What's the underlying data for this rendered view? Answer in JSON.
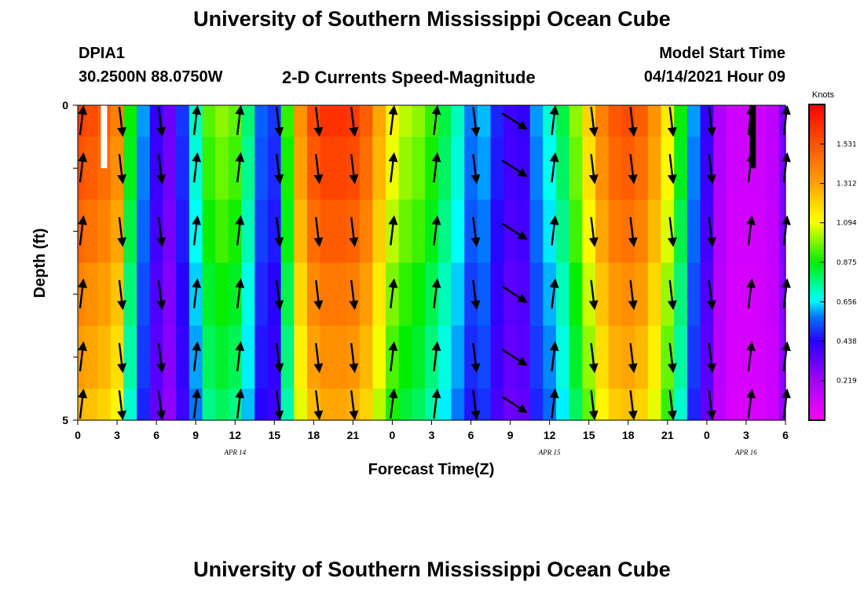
{
  "header": {
    "title": "University of Southern Mississippi Ocean Cube",
    "station": "DPIA1",
    "coordinates": "30.2500N  88.0750W",
    "subtitle": "2-D Currents Speed-Magnitude",
    "model_label": "Model Start Time",
    "model_time": "04/14/2021 Hour 09"
  },
  "footer": {
    "title": "University of Southern Mississippi Ocean Cube"
  },
  "chart_data": {
    "type": "heatmap",
    "title": "2-D Currents Speed-Magnitude",
    "xlabel": "Forecast Time(Z)",
    "ylabel": "Depth (ft)",
    "x_hours": [
      0,
      1,
      2,
      3,
      4,
      5,
      6,
      7,
      8,
      9,
      10,
      11,
      12,
      13,
      14,
      15,
      16,
      17,
      18,
      19,
      20,
      21,
      22,
      23,
      24,
      25,
      26,
      27,
      28,
      29,
      30,
      31,
      32,
      33,
      34,
      35,
      36,
      37,
      38,
      39,
      40,
      41,
      42,
      43,
      44,
      45,
      46,
      47,
      48,
      49,
      50,
      51,
      52,
      53,
      54
    ],
    "xlim": [
      0,
      54
    ],
    "x_ticks": [
      0,
      3,
      6,
      9,
      12,
      15,
      18,
      21,
      24,
      27,
      30,
      33,
      36,
      39,
      42,
      45,
      48,
      51,
      54
    ],
    "x_tick_labels": [
      "0",
      "3",
      "6",
      "9",
      "12",
      "15",
      "18",
      "21",
      "0",
      "3",
      "6",
      "9",
      "12",
      "15",
      "18",
      "21",
      "0",
      "3",
      "6"
    ],
    "date_labels": [
      {
        "text": "APR 14",
        "hour": 12
      },
      {
        "text": "APR 15",
        "hour": 36
      },
      {
        "text": "APR 16",
        "hour": 51
      }
    ],
    "depth_levels_ft": [
      0.25,
      1,
      2,
      3,
      4,
      4.75
    ],
    "ylim": [
      0,
      5
    ],
    "y_ticks": [
      0,
      1,
      2,
      3,
      4,
      5
    ],
    "y_tick_labels": [
      "0",
      "",
      "",
      "",
      "",
      "5"
    ],
    "surface_speed_knots": [
      1.58,
      1.55,
      1.5,
      1.4,
      0.88,
      0.6,
      0.42,
      0.32,
      0.5,
      0.72,
      0.95,
      1.0,
      0.96,
      0.78,
      0.55,
      0.5,
      0.92,
      1.35,
      1.56,
      1.62,
      1.62,
      1.6,
      1.5,
      1.3,
      1.12,
      1.04,
      1.0,
      0.92,
      0.82,
      0.72,
      0.58,
      0.62,
      0.48,
      0.4,
      0.42,
      0.6,
      0.7,
      0.82,
      1.0,
      1.2,
      1.4,
      1.52,
      1.55,
      1.5,
      1.35,
      1.15,
      0.88,
      0.6,
      0.42,
      0.2,
      0.12,
      0.12,
      0.12,
      0.16,
      0.3
    ],
    "depth_speed_factor": [
      1.0,
      0.97,
      0.93,
      0.88,
      0.84,
      0.8
    ],
    "arrows": [
      {
        "hour": 0.3,
        "dir": "N"
      },
      {
        "hour": 3.3,
        "dir": "S"
      },
      {
        "hour": 6.3,
        "dir": "S"
      },
      {
        "hour": 9.0,
        "dir": "N"
      },
      {
        "hour": 12.3,
        "dir": "N"
      },
      {
        "hour": 15.3,
        "dir": "S"
      },
      {
        "hour": 18.3,
        "dir": "S"
      },
      {
        "hour": 21.0,
        "dir": "S"
      },
      {
        "hour": 24.0,
        "dir": "N"
      },
      {
        "hour": 27.3,
        "dir": "N"
      },
      {
        "hour": 30.3,
        "dir": "S"
      },
      {
        "hour": 33.3,
        "dir": "SE"
      },
      {
        "hour": 36.3,
        "dir": "N"
      },
      {
        "hour": 39.3,
        "dir": "S"
      },
      {
        "hour": 42.3,
        "dir": "S"
      },
      {
        "hour": 45.3,
        "dir": "S"
      },
      {
        "hour": 48.3,
        "dir": "S"
      },
      {
        "hour": 51.3,
        "dir": "N"
      },
      {
        "hour": 54.0,
        "dir": "N"
      }
    ],
    "colorbar": {
      "label": "Knots",
      "min": 0,
      "max": 1.75,
      "ticks": [
        0.219,
        0.438,
        0.656,
        0.875,
        1.094,
        1.312,
        1.531
      ],
      "tick_labels": [
        "0.219",
        "0.438",
        "0.656",
        "0.875",
        "1.094",
        "1.312",
        "1.531"
      ]
    },
    "markers": [
      {
        "hour": 2.0,
        "color": "#ffffff"
      },
      {
        "hour": 51.5,
        "color": "#000000"
      }
    ]
  }
}
